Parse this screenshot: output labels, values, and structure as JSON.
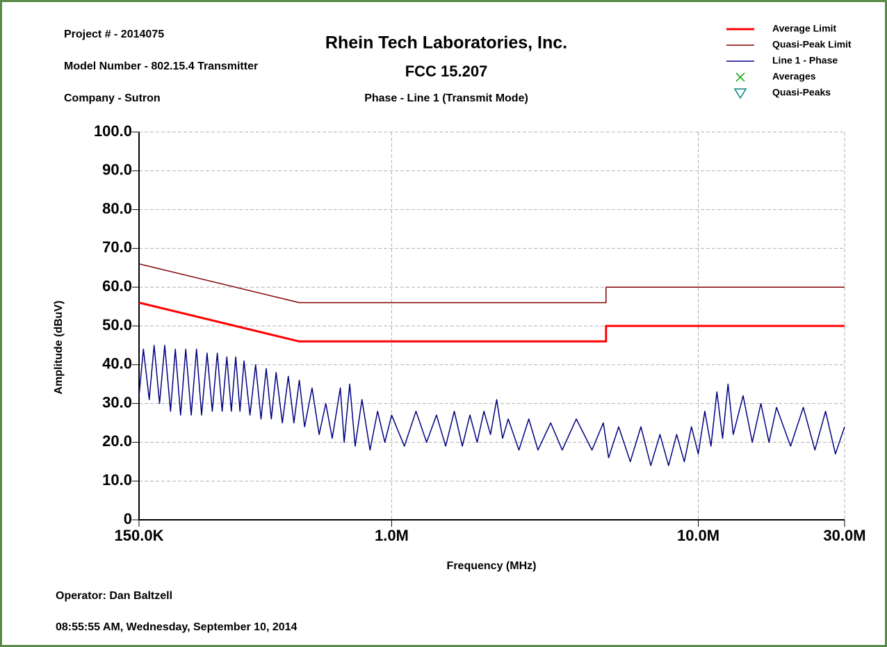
{
  "chart_data": {
    "type": "line",
    "title": "Rhein Tech Laboratories, Inc.",
    "subtitle": "FCC 15.207",
    "caption": "Phase - Line 1 (Transmit Mode)",
    "project": "Project # - 2014075",
    "model": "Model Number - 802.15.4  Transmitter",
    "company": "Company - Sutron",
    "operator": "Operator: Dan Baltzell",
    "timestamp": "08:55:55 AM, Wednesday, September 10, 2014",
    "xlabel": "Frequency (MHz)",
    "ylabel": "Amplitude (dBuV)",
    "xscale": "log",
    "grid": true,
    "legend": "upper right",
    "xlim": [
      0.15,
      30
    ],
    "xticks": [
      {
        "value": 0.15,
        "label": "150.0K"
      },
      {
        "value": 1,
        "label": "1.0M"
      },
      {
        "value": 10,
        "label": "10.0M"
      },
      {
        "value": 30,
        "label": "30.0M"
      }
    ],
    "ylim": [
      0,
      100
    ],
    "yticks": [
      0,
      {
        "value": 10,
        "label": "10.0"
      },
      {
        "value": 20,
        "label": "20.0"
      },
      {
        "value": 30,
        "label": "30.0"
      },
      {
        "value": 40,
        "label": "40.0"
      },
      {
        "value": 50,
        "label": "50.0"
      },
      {
        "value": 60,
        "label": "60.0"
      },
      {
        "value": 70,
        "label": "70.0"
      },
      {
        "value": 80,
        "label": "80.0"
      },
      {
        "value": 90,
        "label": "90.0"
      },
      {
        "value": 100,
        "label": "100.0"
      }
    ],
    "series": [
      {
        "name": "Average Limit",
        "color": "#ff0000",
        "width": 3,
        "x": [
          0.15,
          0.5,
          5,
          5,
          30
        ],
        "values": [
          56,
          46,
          46,
          50,
          50
        ]
      },
      {
        "name": "Quasi-Peak Limit",
        "color": "#800000",
        "width": 1.5,
        "x": [
          0.15,
          0.5,
          5,
          5,
          30
        ],
        "values": [
          66,
          56,
          56,
          60,
          60
        ]
      },
      {
        "name": "Line 1 - Phase",
        "color": "#000080",
        "width": 1.5,
        "x": [
          0.15,
          0.155,
          0.162,
          0.168,
          0.175,
          0.182,
          0.19,
          0.197,
          0.205,
          0.213,
          0.222,
          0.231,
          0.24,
          0.25,
          0.26,
          0.27,
          0.28,
          0.29,
          0.3,
          0.31,
          0.32,
          0.33,
          0.345,
          0.36,
          0.375,
          0.39,
          0.405,
          0.42,
          0.44,
          0.46,
          0.48,
          0.5,
          0.52,
          0.55,
          0.58,
          0.61,
          0.64,
          0.68,
          0.7,
          0.73,
          0.76,
          0.8,
          0.85,
          0.9,
          0.95,
          1.0,
          1.1,
          1.2,
          1.3,
          1.4,
          1.5,
          1.6,
          1.7,
          1.8,
          1.9,
          2.0,
          2.1,
          2.2,
          2.3,
          2.4,
          2.6,
          2.8,
          3.0,
          3.3,
          3.6,
          4.0,
          4.5,
          4.9,
          5.1,
          5.5,
          6.0,
          6.5,
          7.0,
          7.5,
          8.0,
          8.5,
          9.0,
          9.5,
          10,
          10.5,
          11,
          11.5,
          12,
          12.5,
          13,
          14,
          15,
          16,
          17,
          18,
          20,
          22,
          24,
          26,
          28,
          30
        ],
        "values": [
          32,
          44,
          31,
          45,
          30,
          45,
          28,
          44,
          27,
          44,
          27,
          44,
          27,
          43,
          28,
          43,
          28,
          42,
          28,
          42,
          28,
          41,
          27,
          40,
          26,
          39,
          26,
          38,
          25,
          37,
          25,
          36,
          24,
          34,
          22,
          30,
          21,
          34,
          20,
          35,
          19,
          31,
          18,
          28,
          20,
          27,
          19,
          28,
          20,
          27,
          19,
          28,
          19,
          27,
          20,
          28,
          22,
          31,
          21,
          26,
          18,
          26,
          18,
          25,
          18,
          26,
          18,
          25,
          16,
          24,
          15,
          24,
          14,
          22,
          14,
          22,
          15,
          24,
          17,
          28,
          19,
          33,
          21,
          35,
          22,
          32,
          20,
          30,
          20,
          29,
          19,
          29,
          18,
          28,
          17,
          24
        ]
      },
      {
        "name": "Averages",
        "color": "#00a000",
        "marker": "x",
        "x": [],
        "values": []
      },
      {
        "name": "Quasi-Peaks",
        "color": "#008080",
        "marker": "triangle",
        "x": [],
        "values": []
      }
    ]
  }
}
